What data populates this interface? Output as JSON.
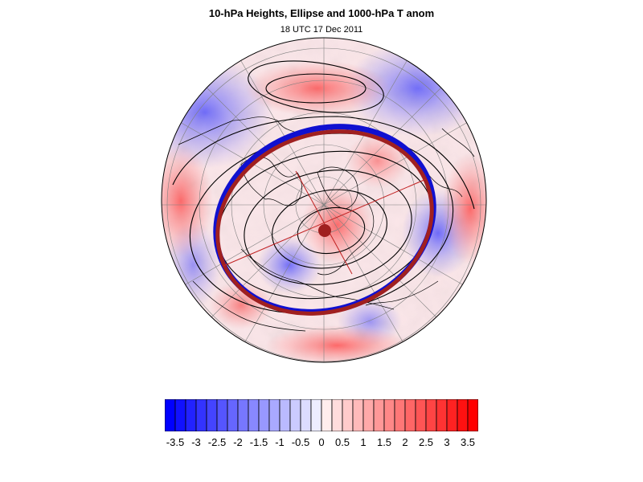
{
  "header": {
    "title": "10-hPa Heights, Ellipse and 1000-hPa T anom",
    "subtitle": "18 UTC 17 Dec 2011"
  },
  "map": {
    "projection": "polar-stereographic-north",
    "fill_field": "1000-hPa temperature anomaly",
    "contour_field": "10-hPa geopotential height",
    "contour_color": "#000000",
    "ellipse_color": "#a02020",
    "ellipse_edge_color": "#1010d0",
    "ellipse_center_color": "#a02020",
    "coastline_color": "#000000",
    "graticule_color": "#808080"
  },
  "colorbar": {
    "min": -3.75,
    "max": 3.75,
    "step": 0.25,
    "negative_color": "#0000ff",
    "neutral_color": "#ffffff",
    "positive_color": "#ff0000",
    "labels": [
      "-3.5",
      "-3",
      "-2.5",
      "-2",
      "-1.5",
      "-1",
      "-0.5",
      "0",
      "0.5",
      "1",
      "1.5",
      "2",
      "2.5",
      "3",
      "3.5"
    ]
  }
}
